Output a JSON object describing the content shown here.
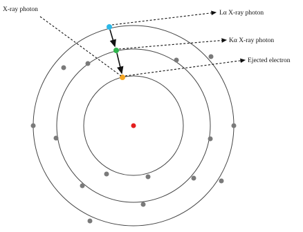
{
  "labels": {
    "incident": "X-ray photon",
    "l_alpha": "Lα X-ray photon",
    "k_alpha": "Kα X-ray photon",
    "ejected": "Ejected electron"
  },
  "shells": [
    {
      "shell": "K",
      "electrons": 1
    },
    {
      "shell": "L",
      "electrons": 8
    },
    {
      "shell": "M",
      "electrons": 10
    }
  ],
  "colors": {
    "nucleus": "#e41e1e",
    "electron": "#7a7a7a",
    "ejected_electron": "#f5a623",
    "k_transition_electron": "#2db34a",
    "l_transition_electron": "#2bb8e8",
    "line": "#111111"
  }
}
